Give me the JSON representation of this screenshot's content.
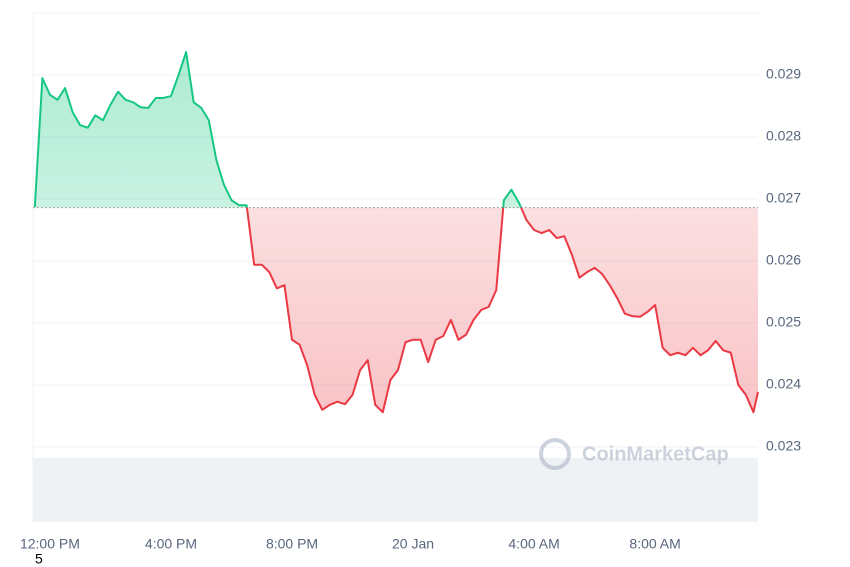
{
  "chart_data": {
    "type": "line",
    "watermark": "CoinMarketCap",
    "footnote": "5",
    "x": [
      -0.5,
      -0.25,
      0,
      0.25,
      0.5,
      0.75,
      1,
      1.25,
      1.5,
      1.75,
      2,
      2.25,
      2.5,
      2.75,
      3,
      3.25,
      3.5,
      3.75,
      4,
      4.25,
      4.5,
      4.75,
      5,
      5.25,
      5.5,
      5.75,
      6,
      6.25,
      6.5,
      6.75,
      7,
      7.25,
      7.5,
      7.75,
      8,
      8.25,
      8.5,
      8.75,
      9,
      9.25,
      9.5,
      9.75,
      10,
      10.25,
      10.5,
      10.75,
      11,
      11.25,
      11.5,
      11.75,
      12,
      12.25,
      12.5,
      12.75,
      13,
      13.25,
      13.5,
      13.75,
      14,
      14.25,
      14.5,
      14.75,
      15,
      15.25,
      15.5,
      15.75,
      16,
      16.25,
      16.5,
      16.75,
      17,
      17.25,
      17.5,
      17.75,
      18,
      18.25,
      18.5,
      18.75,
      19,
      19.25,
      19.5,
      19.75,
      20,
      20.25,
      20.5,
      20.75,
      21,
      21.25,
      21.5,
      21.75,
      22,
      22.25,
      22.5,
      22.75,
      23,
      23.25,
      23.4
    ],
    "values": [
      0.02687,
      0.02895,
      0.02868,
      0.0286,
      0.02879,
      0.0284,
      0.02819,
      0.02815,
      0.02835,
      0.02827,
      0.02852,
      0.02873,
      0.0286,
      0.02856,
      0.02848,
      0.02847,
      0.02863,
      0.02863,
      0.02866,
      0.029,
      0.02937,
      0.02856,
      0.02847,
      0.02827,
      0.02763,
      0.02723,
      0.02698,
      0.0269,
      0.0269,
      0.02594,
      0.02594,
      0.02582,
      0.02556,
      0.02561,
      0.02473,
      0.02465,
      0.02432,
      0.02384,
      0.0236,
      0.02368,
      0.02373,
      0.02369,
      0.02384,
      0.02424,
      0.0244,
      0.02368,
      0.02356,
      0.02408,
      0.02424,
      0.02469,
      0.02473,
      0.02473,
      0.02437,
      0.02473,
      0.02479,
      0.02505,
      0.02473,
      0.02481,
      0.02505,
      0.02521,
      0.02526,
      0.02553,
      0.02698,
      0.02715,
      0.02694,
      0.02666,
      0.0265,
      0.02645,
      0.0265,
      0.02637,
      0.0264,
      0.0261,
      0.02573,
      0.02582,
      0.02589,
      0.02579,
      0.02561,
      0.0254,
      0.02515,
      0.02511,
      0.0251,
      0.02518,
      0.02529,
      0.0246,
      0.02448,
      0.02452,
      0.02448,
      0.0246,
      0.02448,
      0.02456,
      0.02471,
      0.02456,
      0.02452,
      0.024,
      0.02384,
      0.02356,
      0.02389
    ],
    "baseline": 0.02686,
    "color_up": "#16c784",
    "color_down": "#ea3943",
    "xlim": [
      -0.56,
      23.4
    ],
    "xticks": [
      {
        "value": 0,
        "label": "12:00 PM"
      },
      {
        "value": 4,
        "label": "4:00 PM"
      },
      {
        "value": 8,
        "label": "8:00 PM"
      },
      {
        "value": 12,
        "label": "20 Jan"
      },
      {
        "value": 16,
        "label": "4:00 AM"
      },
      {
        "value": 20,
        "label": "8:00 AM"
      }
    ],
    "ylim": [
      0.02179,
      0.03
    ],
    "yticks": [
      0.023,
      0.024,
      0.025,
      0.026,
      0.027,
      0.028,
      0.029
    ],
    "grid": true
  }
}
